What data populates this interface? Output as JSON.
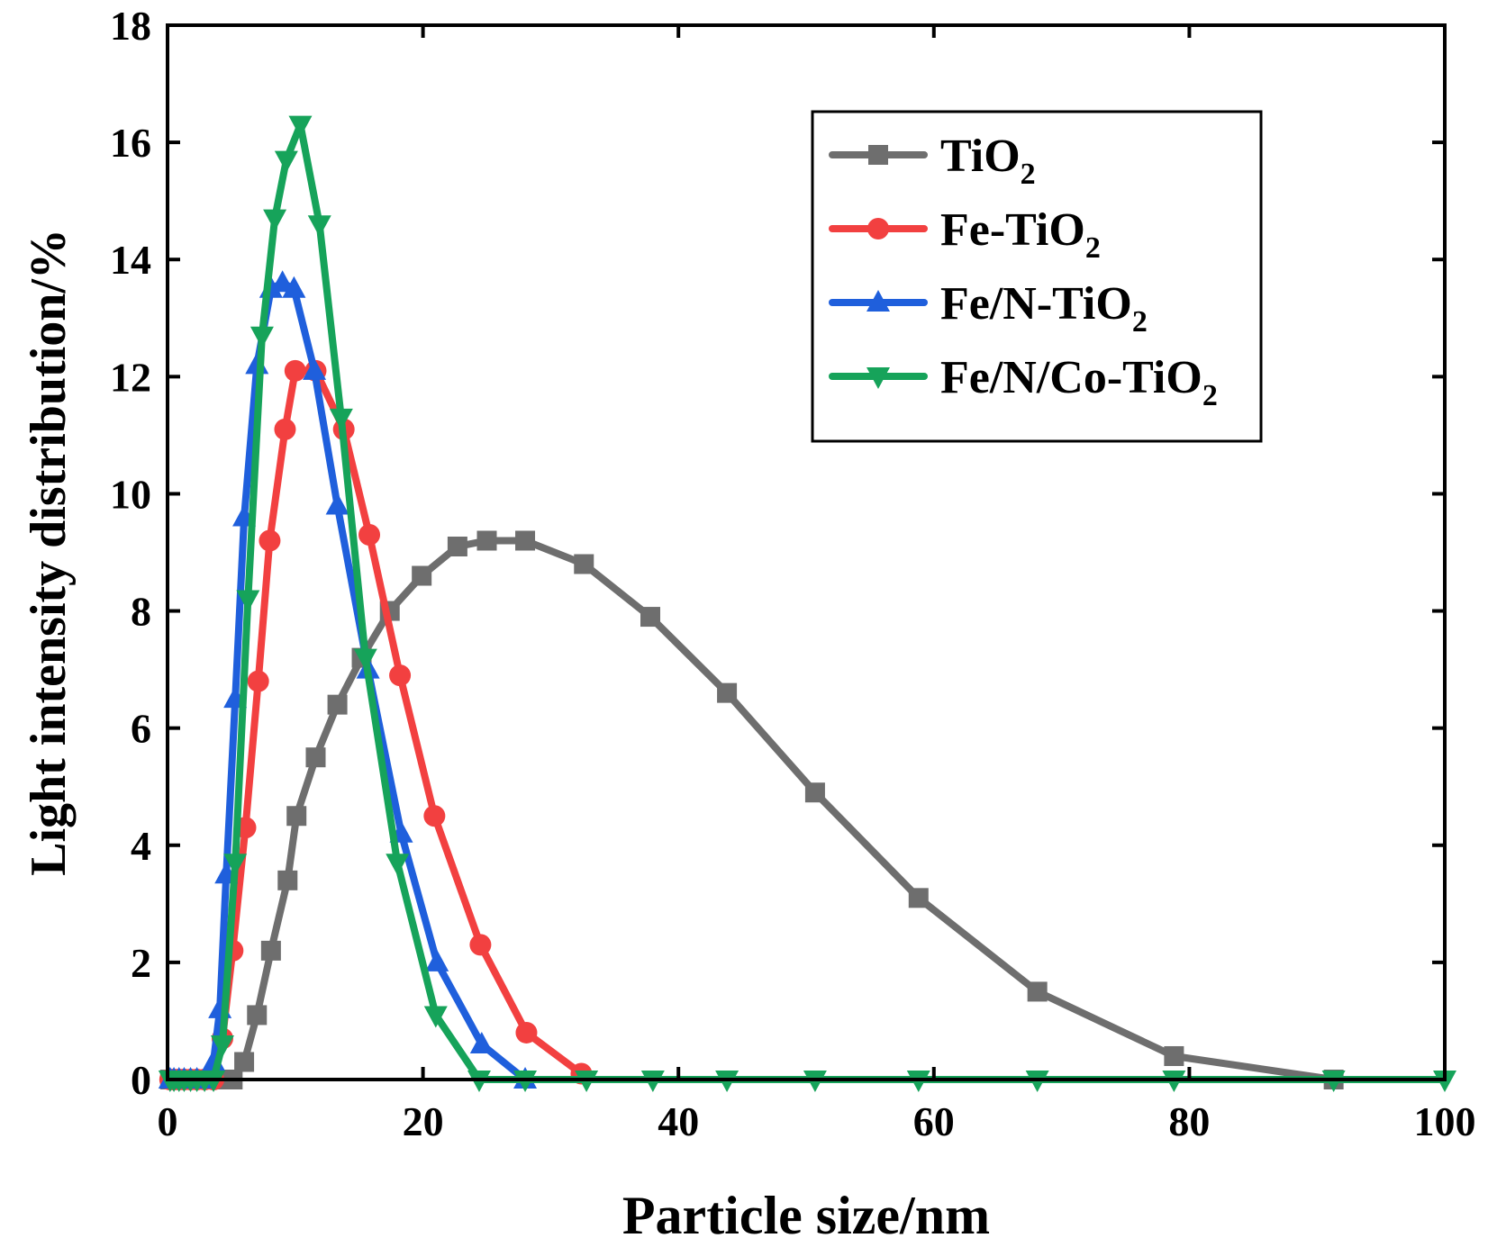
{
  "chart_data": {
    "type": "line",
    "title": "",
    "xlabel": "Particle size/nm",
    "ylabel": "Light intensity distribution/%",
    "xlim": [
      0,
      100
    ],
    "ylim": [
      0,
      18
    ],
    "xticks": [
      "0",
      "20",
      "40",
      "60",
      "80",
      "100"
    ],
    "yticks": [
      "0",
      "2",
      "4",
      "6",
      "8",
      "10",
      "12",
      "14",
      "16",
      "18"
    ],
    "grid": false,
    "legend_position": "top-right",
    "series": [
      {
        "name": "TiO",
        "subscript": "2",
        "color": "#6e6e6e",
        "marker": "square",
        "x": [
          0.2,
          0.5,
          0.9,
          1.3,
          1.8,
          2.3,
          2.9,
          3.6,
          4.3,
          5.1,
          6.0,
          7.0,
          8.1,
          9.4,
          10.1,
          11.6,
          13.3,
          15.2,
          17.4,
          19.9,
          22.7,
          25.0,
          28.0,
          32.6,
          37.8,
          43.8,
          50.7,
          58.8,
          68.1,
          78.8,
          91.3
        ],
        "y": [
          0,
          0,
          0,
          0,
          0,
          0,
          0,
          0,
          0,
          0,
          0.3,
          1.1,
          2.2,
          3.4,
          4.5,
          5.5,
          6.4,
          7.2,
          8.0,
          8.6,
          9.1,
          9.2,
          9.2,
          8.8,
          7.9,
          6.6,
          4.9,
          3.1,
          1.5,
          0.4,
          0
        ]
      },
      {
        "name": "Fe-TiO",
        "subscript": "2",
        "color": "#f24040",
        "marker": "circle",
        "x": [
          0.2,
          0.5,
          0.9,
          1.3,
          1.8,
          2.3,
          2.9,
          3.6,
          4.3,
          5.1,
          6.1,
          7.1,
          8.0,
          9.2,
          10.0,
          11.6,
          13.8,
          15.8,
          18.2,
          20.9,
          24.5,
          28.1,
          32.4
        ],
        "y": [
          0,
          0,
          0,
          0,
          0,
          0,
          0,
          0,
          0.7,
          2.2,
          4.3,
          6.8,
          9.2,
          11.1,
          12.1,
          12.1,
          11.1,
          9.3,
          6.9,
          4.5,
          2.3,
          0.8,
          0.1
        ]
      },
      {
        "name": "Fe/N-TiO",
        "subscript": "2",
        "color": "#1f5fdc",
        "marker": "triangle-up",
        "x": [
          0.2,
          0.5,
          0.9,
          1.3,
          1.8,
          2.3,
          2.9,
          3.6,
          4.1,
          4.6,
          5.3,
          6.0,
          7.0,
          8.1,
          9.0,
          9.9,
          11.5,
          13.3,
          15.7,
          18.3,
          21.1,
          24.6,
          28.0
        ],
        "y": [
          0,
          0,
          0,
          0,
          0,
          0,
          0,
          0.3,
          1.2,
          3.5,
          6.5,
          9.6,
          12.2,
          13.5,
          13.6,
          13.5,
          12.1,
          9.8,
          7.0,
          4.2,
          2.0,
          0.6,
          0
        ]
      },
      {
        "name": "Fe/N/Co-TiO",
        "subscript": "2",
        "color": "#16a35a",
        "marker": "triangle-down",
        "x": [
          0.2,
          0.5,
          0.9,
          1.3,
          1.8,
          2.3,
          2.9,
          3.6,
          4.3,
          5.3,
          6.3,
          7.4,
          8.4,
          9.3,
          10.4,
          11.9,
          13.6,
          15.5,
          18.0,
          21.0,
          24.4,
          28.0,
          32.8,
          38.0,
          43.8,
          50.7,
          58.8,
          68.1,
          78.8,
          91.3,
          100
        ],
        "y": [
          0,
          0,
          0,
          0,
          0,
          0,
          0,
          0,
          0.6,
          3.7,
          8.2,
          12.7,
          14.7,
          15.7,
          16.3,
          14.6,
          11.3,
          7.2,
          3.7,
          1.1,
          0,
          0,
          0,
          0,
          0,
          0,
          0,
          0,
          0,
          0,
          0
        ]
      }
    ]
  }
}
